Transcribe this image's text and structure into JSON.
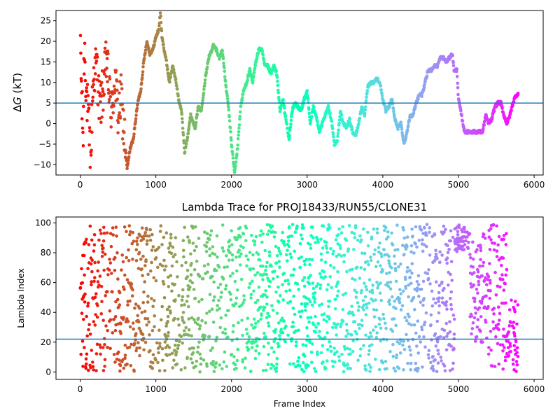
{
  "chart_data": [
    {
      "type": "scatter",
      "title": "",
      "xlabel": "",
      "ylabel": "ΔG (kT)",
      "ylabel_italic_part": "G",
      "xlim": [
        -320,
        6120
      ],
      "ylim": [
        -12.5,
        27.5
      ],
      "xticks": [
        0,
        1000,
        2000,
        3000,
        4000,
        5000,
        6000
      ],
      "yticks": [
        -10,
        -5,
        0,
        5,
        10,
        15,
        20,
        25
      ],
      "hline": 5,
      "hline_color": "#1f77b4",
      "colormap": "rainbow (reversed: red at frame 0, violet at last frame)",
      "grid": false,
      "trace_anchors": [
        [
          0,
          27
        ],
        [
          5,
          20
        ],
        [
          10,
          14
        ],
        [
          15,
          10
        ],
        [
          20,
          6
        ],
        [
          30,
          1
        ],
        [
          40,
          -3
        ],
        [
          50,
          16
        ],
        [
          60,
          18
        ],
        [
          80,
          8
        ],
        [
          100,
          3
        ],
        [
          120,
          -3
        ],
        [
          140,
          -10
        ],
        [
          160,
          6
        ],
        [
          180,
          12
        ],
        [
          220,
          14
        ],
        [
          260,
          3
        ],
        [
          300,
          8
        ],
        [
          350,
          16
        ],
        [
          380,
          8
        ],
        [
          420,
          2
        ],
        [
          460,
          12
        ],
        [
          500,
          2
        ],
        [
          540,
          6
        ],
        [
          580,
          -2
        ],
        [
          620,
          -11
        ],
        [
          660,
          -6
        ],
        [
          700,
          -4
        ],
        [
          740,
          2
        ],
        [
          760,
          5
        ],
        [
          800,
          8
        ],
        [
          840,
          15
        ],
        [
          880,
          20
        ],
        [
          920,
          17
        ],
        [
          960,
          18
        ],
        [
          1000,
          21
        ],
        [
          1040,
          23
        ],
        [
          1060,
          27
        ],
        [
          1080,
          21
        ],
        [
          1100,
          19
        ],
        [
          1140,
          15
        ],
        [
          1180,
          10
        ],
        [
          1220,
          14
        ],
        [
          1260,
          11
        ],
        [
          1300,
          6
        ],
        [
          1340,
          3
        ],
        [
          1380,
          -7
        ],
        [
          1420,
          -3
        ],
        [
          1460,
          2
        ],
        [
          1520,
          -1
        ],
        [
          1560,
          4
        ],
        [
          1600,
          3
        ],
        [
          1660,
          12
        ],
        [
          1700,
          16
        ],
        [
          1760,
          19
        ],
        [
          1800,
          18
        ],
        [
          1840,
          16
        ],
        [
          1880,
          18
        ],
        [
          1920,
          10
        ],
        [
          1960,
          4
        ],
        [
          2000,
          -5
        ],
        [
          2040,
          -12
        ],
        [
          2080,
          -6
        ],
        [
          2120,
          4
        ],
        [
          2160,
          8
        ],
        [
          2200,
          10
        ],
        [
          2240,
          13
        ],
        [
          2280,
          10
        ],
        [
          2320,
          15
        ],
        [
          2360,
          18
        ],
        [
          2400,
          18
        ],
        [
          2440,
          14
        ],
        [
          2480,
          14
        ],
        [
          2520,
          12
        ],
        [
          2560,
          14
        ],
        [
          2600,
          12
        ],
        [
          2640,
          3
        ],
        [
          2680,
          6
        ],
        [
          2720,
          1
        ],
        [
          2760,
          -4
        ],
        [
          2800,
          3
        ],
        [
          2840,
          5
        ],
        [
          2880,
          4
        ],
        [
          2920,
          3
        ],
        [
          2960,
          6
        ],
        [
          3000,
          8
        ],
        [
          3040,
          0
        ],
        [
          3080,
          4
        ],
        [
          3120,
          2
        ],
        [
          3160,
          -2
        ],
        [
          3200,
          0
        ],
        [
          3240,
          2
        ],
        [
          3280,
          4
        ],
        [
          3320,
          1
        ],
        [
          3360,
          -5
        ],
        [
          3400,
          -4
        ],
        [
          3440,
          3
        ],
        [
          3480,
          0
        ],
        [
          3520,
          -1
        ],
        [
          3560,
          1
        ],
        [
          3600,
          -2
        ],
        [
          3640,
          -3
        ],
        [
          3680,
          0
        ],
        [
          3720,
          4
        ],
        [
          3760,
          2
        ],
        [
          3800,
          9
        ],
        [
          3840,
          10
        ],
        [
          3880,
          10
        ],
        [
          3920,
          11
        ],
        [
          3960,
          10
        ],
        [
          4000,
          6
        ],
        [
          4040,
          3
        ],
        [
          4080,
          4
        ],
        [
          4120,
          6
        ],
        [
          4160,
          1
        ],
        [
          4200,
          -1
        ],
        [
          4240,
          0
        ],
        [
          4280,
          -5
        ],
        [
          4320,
          -2
        ],
        [
          4360,
          2
        ],
        [
          4400,
          2
        ],
        [
          4440,
          5
        ],
        [
          4480,
          7
        ],
        [
          4520,
          7
        ],
        [
          4560,
          10
        ],
        [
          4600,
          13
        ],
        [
          4640,
          13
        ],
        [
          4680,
          14
        ],
        [
          4720,
          14
        ],
        [
          4760,
          16
        ],
        [
          4800,
          16
        ],
        [
          4840,
          15
        ],
        [
          4880,
          16
        ],
        [
          4920,
          17
        ],
        [
          4940,
          13
        ],
        [
          4980,
          13
        ],
        [
          5000,
          6
        ],
        [
          5040,
          2
        ],
        [
          5080,
          -2
        ],
        [
          5120,
          -2
        ],
        [
          5200,
          -2
        ],
        [
          5280,
          -2
        ],
        [
          5320,
          -2
        ],
        [
          5360,
          2
        ],
        [
          5400,
          0
        ],
        [
          5440,
          1
        ],
        [
          5480,
          4
        ],
        [
          5520,
          5
        ],
        [
          5560,
          5
        ],
        [
          5600,
          2
        ],
        [
          5640,
          0
        ],
        [
          5680,
          2
        ],
        [
          5720,
          5
        ],
        [
          5760,
          7
        ],
        [
          5790,
          7
        ]
      ]
    },
    {
      "type": "scatter",
      "title": "Lambda Trace for PROJ18433/RUN55/CLONE31",
      "xlabel": "Frame Index",
      "ylabel": "Lambda Index",
      "xlim": [
        -320,
        6120
      ],
      "ylim": [
        -5,
        104
      ],
      "xticks": [
        0,
        1000,
        2000,
        3000,
        4000,
        5000,
        6000
      ],
      "yticks": [
        0,
        20,
        40,
        60,
        80,
        100
      ],
      "hline": 22,
      "hline_color": "#1f77b4",
      "colormap": "rainbow (reversed: red at frame 0, violet at last frame)",
      "grid": false,
      "n_frames": 5790,
      "value_range": [
        0,
        99
      ],
      "high_band": {
        "x_range": [
          4950,
          5150
        ],
        "y_range": [
          80,
          99
        ]
      }
    }
  ]
}
